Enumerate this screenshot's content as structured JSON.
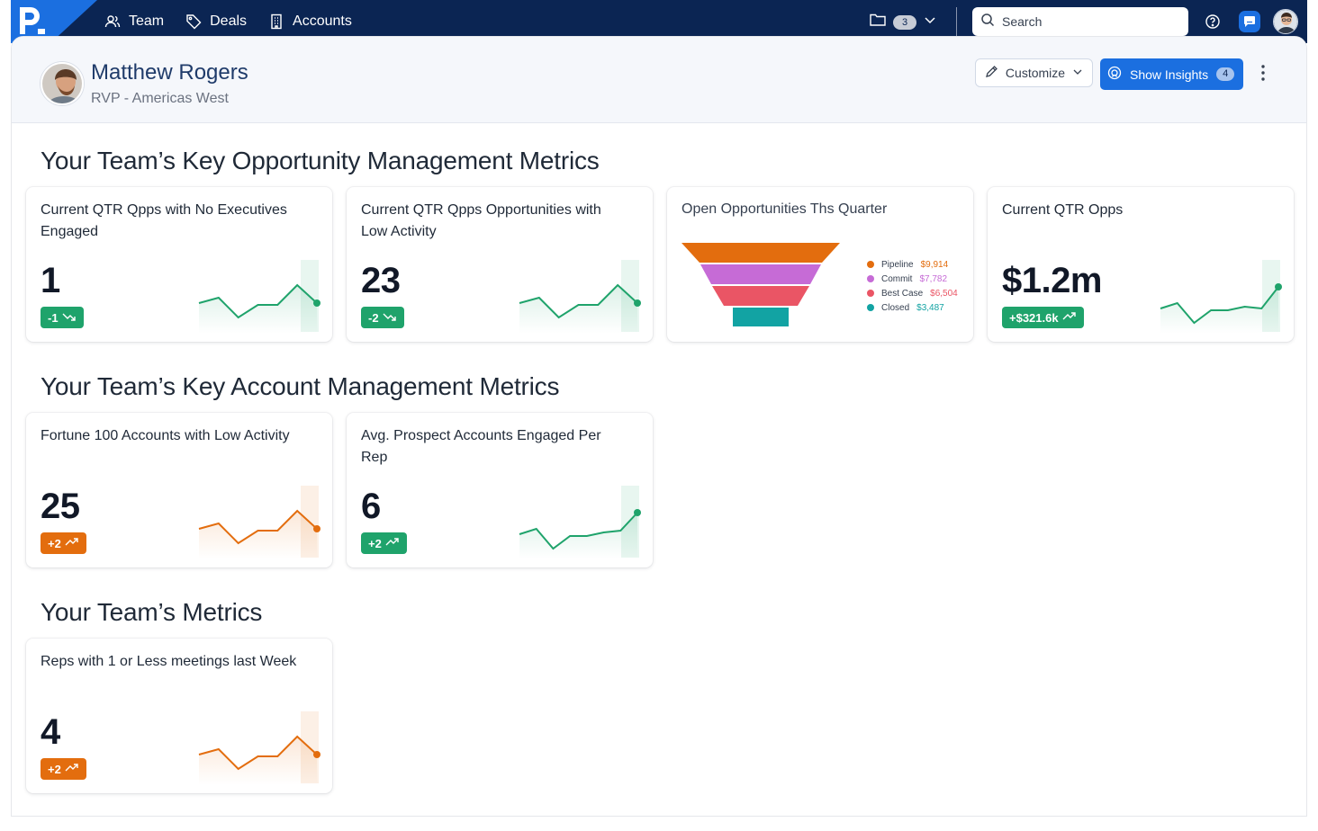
{
  "nav": {
    "items": [
      {
        "label": "Team",
        "icon": "users-icon"
      },
      {
        "label": "Deals",
        "icon": "tag-icon"
      },
      {
        "label": "Accounts",
        "icon": "building-icon"
      }
    ],
    "folder_count": "3",
    "search_placeholder": "Search"
  },
  "profile": {
    "name": "Matthew Rogers",
    "role": "RVP - Americas West",
    "customize_label": "Customize",
    "insights_label": "Show Insights",
    "insights_count": "4"
  },
  "colors": {
    "navy": "#0b2553",
    "primary": "#1b6fe0",
    "green": "#1fa36b",
    "orange": "#e36d0e"
  },
  "sections": [
    {
      "title": "Your Team’s Key Opportunity Management Metrics",
      "cards": [
        {
          "title": "Current QTR Qpps with No Executives Engaged",
          "value": "1",
          "delta": "-1",
          "trend": "down",
          "tone": "green",
          "spark": [
            56,
            50,
            72,
            58,
            58,
            36,
            56
          ]
        },
        {
          "title": "Current QTR Qpps Opportunities with Low Activity",
          "value": "23",
          "delta": "-2",
          "trend": "down",
          "tone": "green",
          "spark": [
            56,
            50,
            72,
            58,
            58,
            36,
            56
          ]
        },
        {
          "title": "Open Opportunities Ths Quarter",
          "type": "funnel",
          "legend": [
            {
              "label": "Pipeline",
              "value": "$9,914",
              "color": "#e36d0e"
            },
            {
              "label": "Commit",
              "value": "$7,782",
              "color": "#c66bd6"
            },
            {
              "label": "Best Case",
              "value": "$6,504",
              "color": "#ea5565"
            },
            {
              "label": "Closed",
              "value": "$3,487",
              "color": "#12a3a3"
            }
          ]
        },
        {
          "title": "Current QTR Opps",
          "value": "$1.2m",
          "delta": "+$321.6k",
          "trend": "up",
          "tone": "green",
          "spark": [
            62,
            56,
            78,
            64,
            64,
            60,
            62,
            38
          ]
        }
      ]
    },
    {
      "title": "Your Team’s Key Account Management Metrics",
      "cards": [
        {
          "title": "Fortune 100 Accounts with Low Activity",
          "value": "25",
          "delta": "+2",
          "trend": "up",
          "tone": "orange",
          "spark": [
            56,
            50,
            72,
            58,
            58,
            36,
            56
          ]
        },
        {
          "title": "Avg. Prospect Accounts Engaged Per Rep",
          "value": "6",
          "delta": "+2",
          "trend": "up",
          "tone": "green",
          "spark": [
            62,
            56,
            78,
            64,
            64,
            60,
            58,
            38
          ]
        }
      ]
    },
    {
      "title": "Your Team’s Metrics",
      "cards": [
        {
          "title": "Reps with 1 or Less meetings last Week",
          "value": "4",
          "delta": "+2",
          "trend": "up",
          "tone": "orange",
          "spark": [
            56,
            50,
            72,
            58,
            58,
            36,
            56
          ]
        }
      ]
    }
  ]
}
